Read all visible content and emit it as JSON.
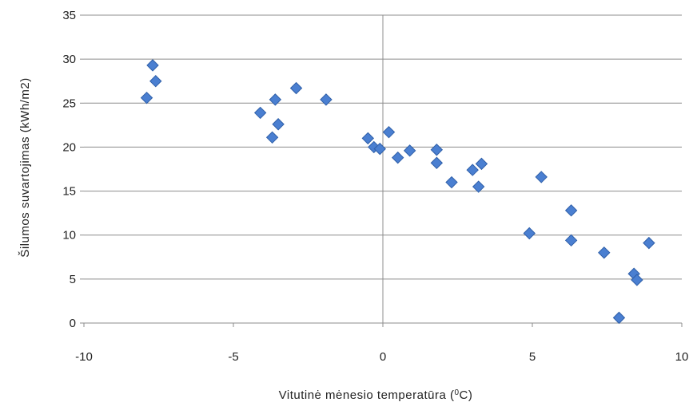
{
  "chart_data": {
    "type": "scatter",
    "title": "",
    "xlabel": "Vitutinė mėnesio temperatūra (",
    "xlabel_sup": "0",
    "xlabel_suffix": "C)",
    "ylabel": "Šilumos suvartojimas  (kWh/m2)",
    "xlim": [
      -10,
      10
    ],
    "ylim": [
      0,
      35
    ],
    "xticks": [
      -10,
      -5,
      0,
      5,
      10
    ],
    "yticks": [
      0,
      5,
      10,
      15,
      20,
      25,
      30,
      35
    ],
    "grid": "horizontal",
    "legend": "none",
    "marker": "diamond",
    "color": "#4a7fd1",
    "series": [
      {
        "points": [
          [
            -7.9,
            25.6
          ],
          [
            -7.7,
            29.3
          ],
          [
            -7.6,
            27.5
          ],
          [
            -4.1,
            23.9
          ],
          [
            -3.6,
            25.4
          ],
          [
            -3.5,
            22.6
          ],
          [
            -3.7,
            21.1
          ],
          [
            -2.9,
            26.7
          ],
          [
            -1.9,
            25.4
          ],
          [
            -0.5,
            21.0
          ],
          [
            -0.3,
            20.0
          ],
          [
            -0.1,
            19.8
          ],
          [
            0.2,
            21.7
          ],
          [
            0.5,
            18.8
          ],
          [
            0.9,
            19.6
          ],
          [
            1.8,
            19.7
          ],
          [
            1.8,
            18.2
          ],
          [
            2.3,
            16.0
          ],
          [
            3.0,
            17.4
          ],
          [
            3.3,
            18.1
          ],
          [
            3.2,
            15.5
          ],
          [
            4.9,
            10.2
          ],
          [
            5.3,
            16.6
          ],
          [
            6.3,
            9.4
          ],
          [
            6.3,
            12.8
          ],
          [
            7.4,
            8.0
          ],
          [
            7.9,
            0.6
          ],
          [
            8.4,
            5.6
          ],
          [
            8.5,
            4.9
          ],
          [
            8.9,
            9.1
          ]
        ]
      }
    ]
  }
}
